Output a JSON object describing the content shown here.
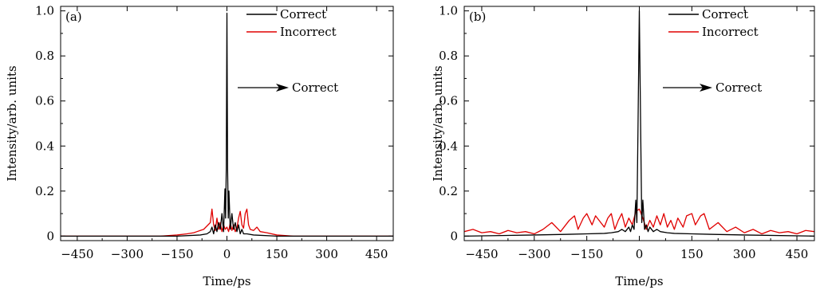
{
  "chart_data": [
    {
      "type": "line",
      "panel_label": "(a)",
      "xlabel": "Time/ps",
      "ylabel": "Intensity/arb. units",
      "xlim": [
        -500,
        500
      ],
      "ylim": [
        -0.02,
        1.02
      ],
      "x_ticks": [
        -450,
        -300,
        -150,
        0,
        150,
        300,
        450
      ],
      "x_tick_labels": [
        "−450",
        "−300",
        "−150",
        "0",
        "150",
        "300",
        "450"
      ],
      "y_ticks": [
        0,
        0.2,
        0.4,
        0.6,
        0.8,
        1.0
      ],
      "y_tick_labels": [
        "0",
        "0.2",
        "0.4",
        "0.6",
        "0.8",
        "1.0"
      ],
      "legend_position": "top-right",
      "annotation": {
        "text": "Correct",
        "arrow": "right"
      },
      "series": [
        {
          "name": "Correct",
          "color": "#000000",
          "x": [
            -500,
            -150,
            -80,
            -60,
            -50,
            -45,
            -40,
            -35,
            -30,
            -25,
            -20,
            -15,
            -10,
            -6,
            -4,
            -2,
            0,
            2,
            4,
            6,
            10,
            15,
            20,
            25,
            30,
            35,
            40,
            45,
            50,
            60,
            80,
            150,
            500
          ],
          "y": [
            0,
            0,
            0.005,
            0.01,
            0.02,
            0.04,
            0.01,
            0.05,
            0.02,
            0.06,
            0.03,
            0.1,
            0.02,
            0.21,
            0.08,
            0.3,
            0.99,
            0.3,
            0.08,
            0.2,
            0.03,
            0.1,
            0.03,
            0.06,
            0.02,
            0.05,
            0.01,
            0.03,
            0.01,
            0.01,
            0.005,
            0,
            0
          ]
        },
        {
          "name": "Incorrect",
          "color": "#e00000",
          "x": [
            -500,
            -200,
            -150,
            -120,
            -100,
            -90,
            -80,
            -70,
            -60,
            -50,
            -45,
            -40,
            -35,
            -30,
            -25,
            -20,
            -15,
            -10,
            -5,
            0,
            5,
            10,
            15,
            20,
            25,
            30,
            35,
            40,
            45,
            50,
            55,
            60,
            65,
            70,
            80,
            90,
            100,
            120,
            150,
            200,
            500
          ],
          "y": [
            0,
            0,
            0.005,
            0.01,
            0.015,
            0.02,
            0.025,
            0.03,
            0.045,
            0.06,
            0.12,
            0.05,
            0.025,
            0.08,
            0.03,
            0.06,
            0.02,
            0.05,
            0.03,
            0.04,
            0.02,
            0.06,
            0.025,
            0.05,
            0.02,
            0.035,
            0.08,
            0.11,
            0.05,
            0.035,
            0.1,
            0.12,
            0.05,
            0.03,
            0.025,
            0.04,
            0.02,
            0.015,
            0.005,
            0,
            0
          ]
        }
      ]
    },
    {
      "type": "line",
      "panel_label": "(b)",
      "xlabel": "Time/ps",
      "ylabel": "Intensity/arb. units",
      "xlim": [
        -500,
        500
      ],
      "ylim": [
        -0.02,
        1.02
      ],
      "x_ticks": [
        -450,
        -300,
        -150,
        0,
        150,
        300,
        450
      ],
      "x_tick_labels": [
        "−450",
        "−300",
        "−150",
        "0",
        "150",
        "300",
        "450"
      ],
      "y_ticks": [
        0,
        0.2,
        0.4,
        0.6,
        0.8,
        1.0
      ],
      "y_tick_labels": [
        "0",
        "0.2",
        "0.4",
        "0.6",
        "0.8",
        "1.0"
      ],
      "legend_position": "top-right",
      "annotation": {
        "text": "Correct",
        "arrow": "right"
      },
      "series": [
        {
          "name": "Correct",
          "color": "#000000",
          "x": [
            -500,
            -300,
            -200,
            -150,
            -100,
            -80,
            -60,
            -50,
            -40,
            -30,
            -25,
            -20,
            -15,
            -10,
            -7,
            -4,
            0,
            4,
            7,
            10,
            15,
            20,
            25,
            30,
            40,
            50,
            60,
            80,
            100,
            150,
            200,
            300,
            500
          ],
          "y": [
            0,
            0.005,
            0.008,
            0.01,
            0.012,
            0.015,
            0.02,
            0.03,
            0.02,
            0.04,
            0.02,
            0.05,
            0.03,
            0.16,
            0.06,
            0.45,
            1.0,
            0.45,
            0.06,
            0.16,
            0.03,
            0.05,
            0.02,
            0.04,
            0.02,
            0.03,
            0.02,
            0.015,
            0.012,
            0.01,
            0.008,
            0.005,
            0
          ]
        },
        {
          "name": "Incorrect",
          "color": "#e00000",
          "x": [
            -500,
            -475,
            -450,
            -425,
            -400,
            -375,
            -350,
            -325,
            -300,
            -275,
            -250,
            -225,
            -200,
            -185,
            -175,
            -160,
            -150,
            -135,
            -125,
            -110,
            -100,
            -90,
            -80,
            -70,
            -60,
            -50,
            -40,
            -30,
            -20,
            -10,
            0,
            10,
            20,
            30,
            40,
            50,
            60,
            70,
            80,
            90,
            100,
            110,
            125,
            135,
            150,
            160,
            175,
            185,
            200,
            225,
            250,
            275,
            300,
            325,
            350,
            375,
            400,
            425,
            450,
            475,
            500
          ],
          "y": [
            0.02,
            0.03,
            0.015,
            0.02,
            0.01,
            0.025,
            0.015,
            0.02,
            0.01,
            0.03,
            0.06,
            0.02,
            0.07,
            0.09,
            0.03,
            0.08,
            0.1,
            0.05,
            0.09,
            0.06,
            0.04,
            0.08,
            0.1,
            0.03,
            0.07,
            0.1,
            0.04,
            0.08,
            0.05,
            0.11,
            0.12,
            0.08,
            0.03,
            0.07,
            0.04,
            0.09,
            0.05,
            0.1,
            0.04,
            0.07,
            0.03,
            0.08,
            0.04,
            0.09,
            0.1,
            0.05,
            0.09,
            0.1,
            0.03,
            0.06,
            0.02,
            0.04,
            0.015,
            0.03,
            0.01,
            0.025,
            0.015,
            0.02,
            0.01,
            0.025,
            0.02
          ]
        }
      ]
    }
  ]
}
